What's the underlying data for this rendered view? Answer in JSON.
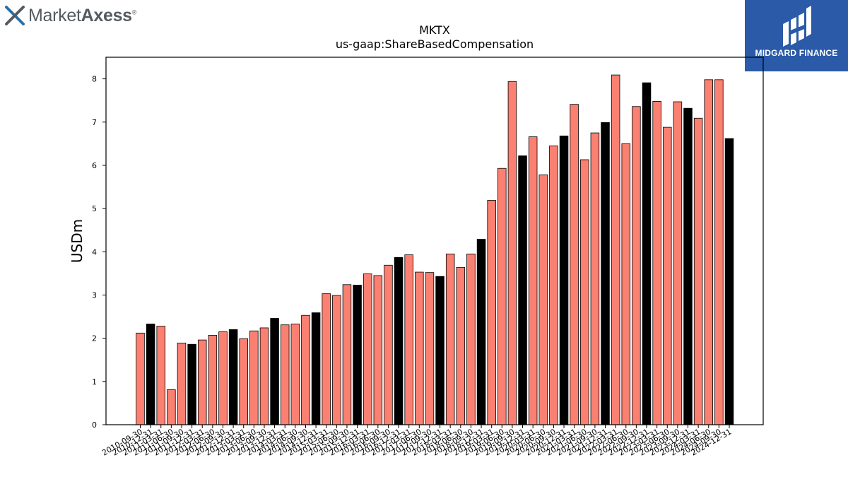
{
  "brand": {
    "name_regular": "Market",
    "name_bold": "Axess",
    "registered": "®"
  },
  "watermark": {
    "text": "MIDGARD FINANCE",
    "background": "#2a5aa8"
  },
  "colors": {
    "bar_default": "#fa8072",
    "bar_highlight": "#000000",
    "edge": "#000000"
  },
  "chart_data": {
    "type": "bar",
    "title": "MKTX",
    "subtitle": "us-gaap:ShareBasedCompensation",
    "ylabel": "USDm",
    "xlabel": "",
    "ylim": [
      0,
      8.5
    ],
    "yticks": [
      0,
      1,
      2,
      3,
      4,
      5,
      6,
      7,
      8
    ],
    "grid": false,
    "categories": [
      "2010-09-30",
      "2010-12-31",
      "2011-03-31",
      "2011-06-30",
      "2011-09-30",
      "2011-12-31",
      "2012-03-31",
      "2012-06-30",
      "2012-09-30",
      "2012-12-31",
      "2013-03-31",
      "2013-06-30",
      "2013-09-30",
      "2013-12-31",
      "2014-03-31",
      "2014-06-30",
      "2014-09-30",
      "2014-12-31",
      "2015-03-31",
      "2015-06-30",
      "2015-09-30",
      "2015-12-31",
      "2016-03-31",
      "2016-06-30",
      "2016-09-30",
      "2016-12-31",
      "2017-03-31",
      "2017-06-30",
      "2017-09-30",
      "2017-12-31",
      "2018-03-31",
      "2018-06-30",
      "2018-09-30",
      "2018-12-31",
      "2019-03-31",
      "2019-06-30",
      "2019-09-30",
      "2019-12-31",
      "2020-03-31",
      "2020-06-30",
      "2020-09-30",
      "2020-12-31",
      "2021-03-31",
      "2021-06-30",
      "2021-09-30",
      "2021-12-31",
      "2022-03-31",
      "2022-06-30",
      "2022-09-30",
      "2022-12-31",
      "2023-03-31",
      "2023-06-30",
      "2023-09-30",
      "2023-12-31",
      "2024-03-31",
      "2024-06-30",
      "2024-09-30",
      "2024-12-31"
    ],
    "values": [
      2.12,
      2.33,
      2.28,
      0.81,
      1.89,
      1.86,
      1.96,
      2.07,
      2.15,
      2.2,
      1.99,
      2.17,
      2.24,
      2.46,
      2.31,
      2.33,
      2.53,
      2.59,
      3.03,
      2.99,
      3.24,
      3.23,
      3.49,
      3.45,
      3.69,
      3.87,
      3.93,
      3.53,
      3.52,
      3.43,
      3.95,
      3.64,
      3.95,
      4.29,
      5.19,
      5.93,
      7.94,
      6.22,
      6.66,
      5.78,
      6.45,
      6.68,
      7.41,
      6.13,
      6.75,
      6.99,
      8.09,
      6.5,
      7.36,
      7.91,
      7.48,
      6.88,
      7.47,
      7.32,
      7.09,
      7.98,
      7.98,
      6.62
    ],
    "highlight": [
      false,
      true,
      false,
      false,
      false,
      true,
      false,
      false,
      false,
      true,
      false,
      false,
      false,
      true,
      false,
      false,
      false,
      true,
      false,
      false,
      false,
      true,
      false,
      false,
      false,
      true,
      false,
      false,
      false,
      true,
      false,
      false,
      false,
      true,
      false,
      false,
      false,
      true,
      false,
      false,
      false,
      true,
      false,
      false,
      false,
      true,
      false,
      false,
      false,
      true,
      false,
      false,
      false,
      true,
      false,
      false,
      false,
      true
    ]
  }
}
